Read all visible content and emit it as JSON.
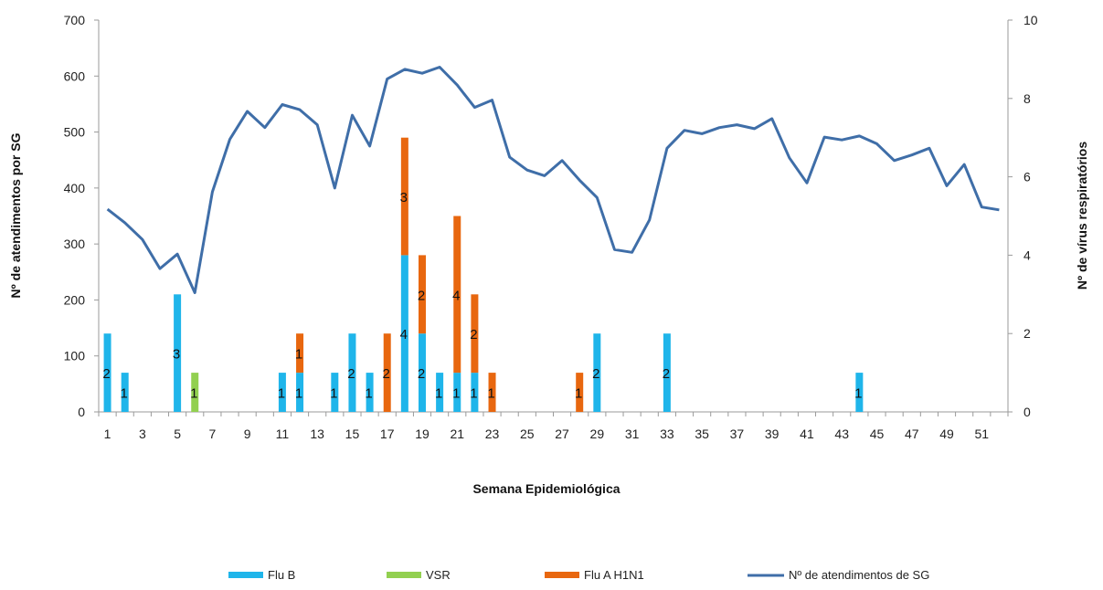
{
  "chart_data": {
    "type": "bar",
    "title": "",
    "xlabel": "Semana Epidemiológica",
    "ylabel_left": "Nº de atendimentos por SG",
    "ylabel_right": "Nº de vírus respiratórios",
    "ylim_left": [
      0,
      700
    ],
    "yticks_left": [
      0,
      100,
      200,
      300,
      400,
      500,
      600,
      700
    ],
    "ylim_right": [
      0,
      10
    ],
    "yticks_right": [
      0,
      2,
      4,
      6,
      8,
      10
    ],
    "x": [
      1,
      2,
      3,
      4,
      5,
      6,
      7,
      8,
      9,
      10,
      11,
      12,
      13,
      14,
      15,
      16,
      17,
      18,
      19,
      20,
      21,
      22,
      23,
      24,
      25,
      26,
      27,
      28,
      29,
      30,
      31,
      32,
      33,
      34,
      35,
      36,
      37,
      38,
      39,
      40,
      41,
      42,
      43,
      44,
      45,
      46,
      47,
      48,
      49,
      50,
      51,
      52
    ],
    "xtick_labels": [
      "1",
      "3",
      "5",
      "7",
      "9",
      "11",
      "13",
      "15",
      "17",
      "19",
      "21",
      "23",
      "25",
      "27",
      "29",
      "31",
      "33",
      "35",
      "37",
      "39",
      "41",
      "43",
      "45",
      "47",
      "49",
      "51"
    ],
    "stacked_bars": [
      {
        "name": "Flu B",
        "color": "#1fb5ea",
        "points": [
          [
            1,
            2
          ],
          [
            2,
            1
          ],
          [
            5,
            3
          ],
          [
            11,
            1
          ],
          [
            12,
            1
          ],
          [
            14,
            1
          ],
          [
            15,
            2
          ],
          [
            16,
            1
          ],
          [
            18,
            4
          ],
          [
            19,
            2
          ],
          [
            20,
            1
          ],
          [
            21,
            1
          ],
          [
            22,
            1
          ],
          [
            29,
            2
          ],
          [
            33,
            2
          ],
          [
            44,
            1
          ]
        ]
      },
      {
        "name": "VSR",
        "color": "#92d050",
        "points": [
          [
            6,
            1
          ]
        ]
      },
      {
        "name": "Flu A H1N1",
        "color": "#e8670f",
        "points": [
          [
            12,
            1
          ],
          [
            17,
            2
          ],
          [
            18,
            3
          ],
          [
            19,
            2
          ],
          [
            21,
            4
          ],
          [
            22,
            2
          ],
          [
            23,
            1
          ],
          [
            28,
            1
          ]
        ]
      }
    ],
    "line": {
      "name": "Nº de atendimentos de SG",
      "color": "#3f6ea8",
      "values": [
        362,
        338,
        308,
        256,
        282,
        213,
        393,
        487,
        537,
        508,
        549,
        540,
        513,
        400,
        530,
        475,
        595,
        612,
        605,
        616,
        584,
        544,
        557,
        455,
        432,
        422,
        449,
        414,
        383,
        290,
        285,
        343,
        471,
        503,
        497,
        508,
        513,
        506,
        524,
        454,
        409,
        491,
        486,
        493,
        479,
        449,
        459,
        471,
        404,
        442,
        366,
        361
      ]
    },
    "legend": [
      "Flu B",
      "VSR",
      "Flu A H1N1",
      "Nº de atendimentos de SG"
    ],
    "legend_position": "bottom"
  }
}
